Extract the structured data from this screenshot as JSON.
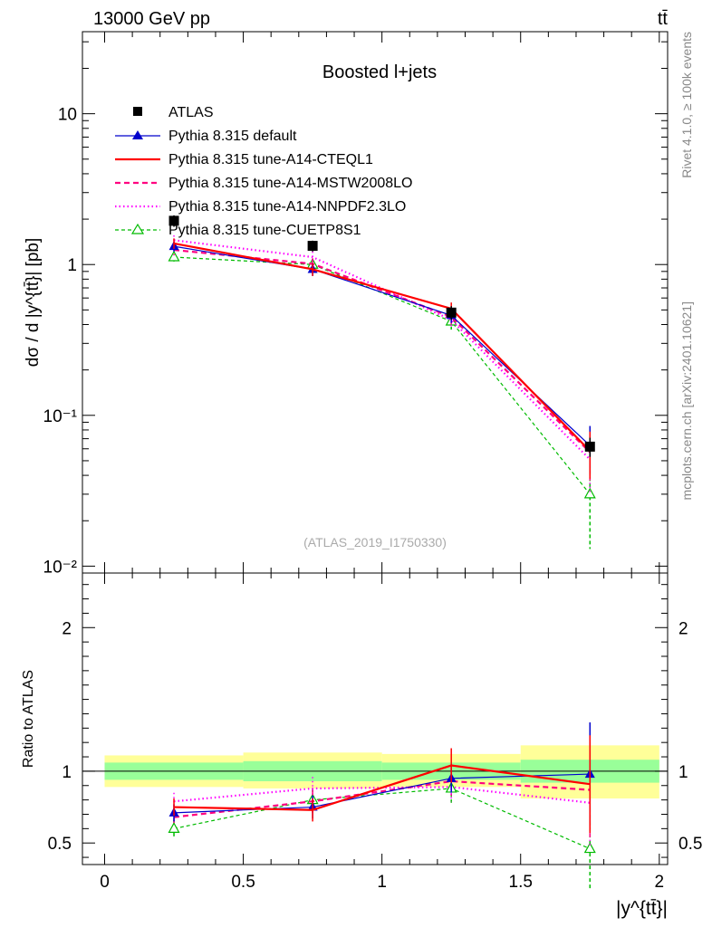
{
  "header": {
    "left": "13000 GeV pp",
    "right": "tt̄"
  },
  "side_text": {
    "rivet": "Rivet 4.1.0, ≥ 100k events",
    "mcplots": "mcplots.cern.ch [arXiv:2401.10621]"
  },
  "colors": {
    "atlas": "#000000",
    "default": "#0000cc",
    "cteql1": "#ff0000",
    "mstw": "#ff0080",
    "nnpdf": "#ff00ff",
    "cuetp8s1": "#00bb00",
    "band_inner": "#99ff99",
    "band_outer": "#ffff99"
  },
  "chart_data": [
    {
      "type": "line",
      "title": "Boosted l+jets",
      "analysis": "(ATLAS_2019_I1750330)",
      "ylabel": "dσ / d |y^{tt̄}| [pb]",
      "yscale": "log",
      "ylim": [
        0.009,
        35
      ],
      "xlim": [
        -0.08,
        2.03
      ],
      "xticks": [
        "0",
        "0.5",
        "1",
        "1.5",
        "2"
      ],
      "yticks": [
        "10⁻²",
        "10⁻¹",
        "1",
        "10"
      ],
      "x": [
        0.25,
        0.75,
        1.25,
        1.75
      ],
      "bin_edges": [
        0,
        0.5,
        1,
        1.5,
        2
      ],
      "series": [
        {
          "key": "atlas",
          "name": "ATLAS",
          "values": [
            1.95,
            1.33,
            0.48,
            0.062
          ],
          "errors": [
            0.17,
            0.11,
            0.05,
            0.009
          ]
        },
        {
          "key": "default",
          "name": "Pythia 8.315 default",
          "values": [
            1.32,
            0.93,
            0.46,
            0.063
          ],
          "errors": [
            0.1,
            0.09,
            0.05,
            0.022
          ]
        },
        {
          "key": "cteql1",
          "name": "Pythia 8.315 tune-A14-CTEQL1",
          "values": [
            1.38,
            0.93,
            0.51,
            0.058
          ],
          "errors": [
            0.11,
            0.09,
            0.05,
            0.02
          ]
        },
        {
          "key": "mstw",
          "name": "Pythia 8.315 tune-A14-MSTW2008LO",
          "values": [
            1.25,
            1.01,
            0.45,
            0.057
          ],
          "errors": [
            0.1,
            0.09,
            0.05,
            0.02
          ]
        },
        {
          "key": "nnpdf",
          "name": "Pythia 8.315 tune-A14-NNPDF2.3LO",
          "values": [
            1.45,
            1.12,
            0.43,
            0.051
          ],
          "errors": [
            0.11,
            0.1,
            0.05,
            0.02
          ]
        },
        {
          "key": "cuetp8s1",
          "name": "Pythia 8.315 tune-CUETP8S1",
          "values": [
            1.12,
            1.0,
            0.42,
            0.03
          ],
          "errors": [
            0.1,
            0.09,
            0.05,
            0.017
          ]
        }
      ]
    },
    {
      "type": "line",
      "ylabel": "Ratio to ATLAS",
      "ylim": [
        0.35,
        2.38
      ],
      "xlabel": "|y^{tt̄}|",
      "yticks": [
        "0.5",
        "1",
        "2"
      ],
      "x": [
        0.25,
        0.75,
        1.25,
        1.75
      ],
      "bands": {
        "inner": [
          [
            0.94,
            1.06
          ],
          [
            0.93,
            1.07
          ],
          [
            0.94,
            1.06
          ],
          [
            0.92,
            1.08
          ]
        ],
        "outer": [
          [
            0.89,
            1.11
          ],
          [
            0.88,
            1.13
          ],
          [
            0.89,
            1.12
          ],
          [
            0.81,
            1.18
          ]
        ]
      },
      "series": [
        {
          "key": "default",
          "values": [
            0.71,
            0.75,
            0.95,
            0.98
          ],
          "errors": [
            0.06,
            0.08,
            0.1,
            0.36
          ]
        },
        {
          "key": "cteql1",
          "values": [
            0.75,
            0.73,
            1.04,
            0.91
          ],
          "errors": [
            0.06,
            0.08,
            0.12,
            0.34
          ]
        },
        {
          "key": "mstw",
          "values": [
            0.68,
            0.79,
            0.93,
            0.87
          ],
          "errors": [
            0.06,
            0.08,
            0.1,
            0.33
          ]
        },
        {
          "key": "nnpdf",
          "values": [
            0.79,
            0.88,
            0.89,
            0.78
          ],
          "errors": [
            0.06,
            0.08,
            0.1,
            0.31
          ]
        },
        {
          "key": "cuetp8s1",
          "values": [
            0.6,
            0.8,
            0.88,
            0.46
          ],
          "errors": [
            0.06,
            0.08,
            0.1,
            0.28
          ]
        }
      ]
    }
  ]
}
